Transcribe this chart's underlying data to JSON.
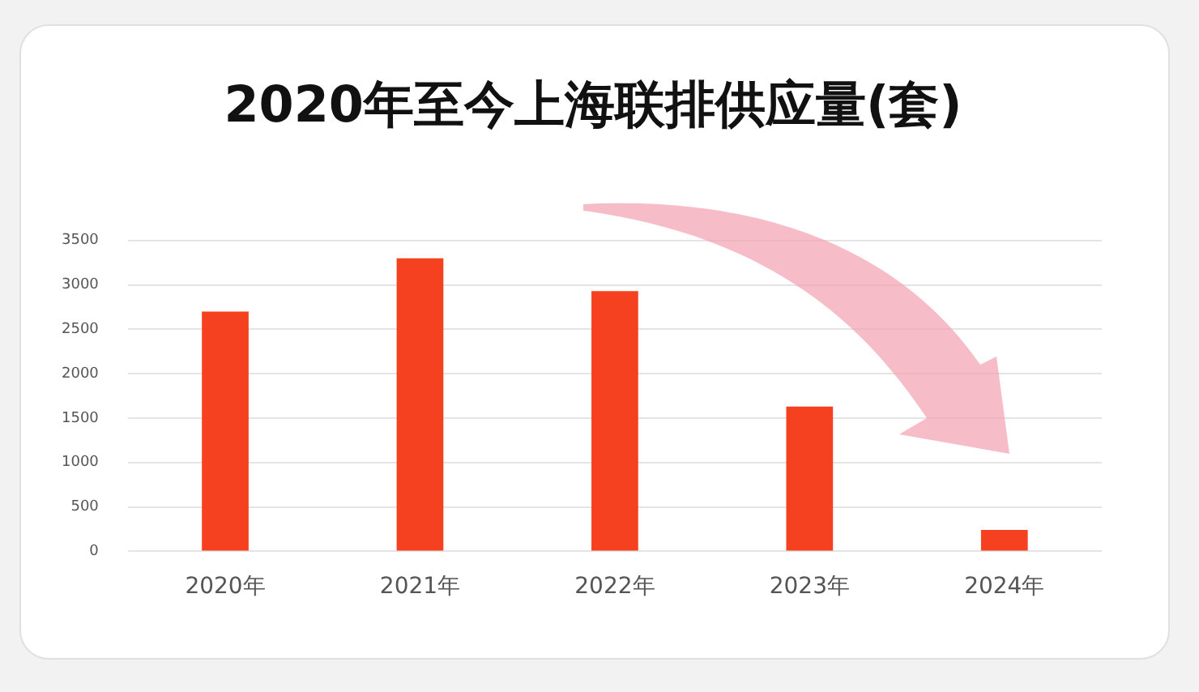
{
  "chart_data": {
    "type": "bar",
    "title": "2020年至今上海联排供应量(套)",
    "categories": [
      "2020年",
      "2021年",
      "2022年",
      "2023年",
      "2024年"
    ],
    "values": [
      2700,
      3300,
      2930,
      1630,
      240
    ],
    "color": "#f5411f",
    "ylim": [
      0,
      3500
    ],
    "yticks": [
      0,
      500,
      1000,
      1500,
      2000,
      2500,
      3000,
      3500
    ],
    "grid": "y",
    "legend": false
  }
}
